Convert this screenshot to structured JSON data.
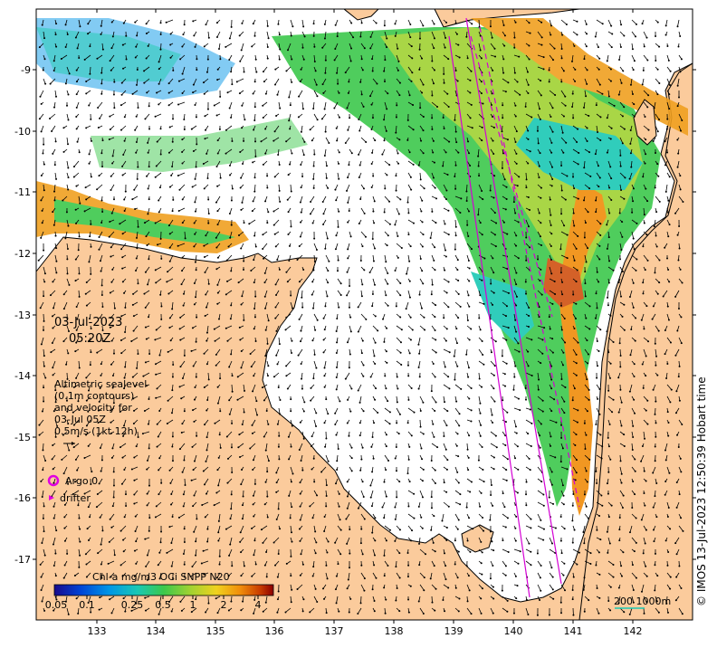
{
  "map": {
    "date": "03-Jul-2023",
    "time": "05:20Z",
    "altimetry": {
      "line1": "Altimetric sealevel",
      "line2": "(0.1m contours)",
      "line3": "and velocity for",
      "line4": "03-Jul 05Z",
      "line5": "0.5m/s (1kt 12h)"
    },
    "argo_label": "Argo 0",
    "drifter_label": "drifter",
    "colorbar": {
      "title": "Chl-a mg/m3 OCi SNPP N20",
      "ticks": [
        "0.05",
        "0.1",
        "0.25",
        "0.5",
        "1",
        "2",
        "4"
      ],
      "colors": [
        "#1a0a8c",
        "#0044d6",
        "#0096e6",
        "#19c8b4",
        "#3cc84b",
        "#a0d232",
        "#f0d21e",
        "#f08c0a",
        "#c83c00",
        "#8c0000"
      ]
    },
    "scale_label": "200  1000m",
    "credit": "© IMOS 13-Jul-2023 12:50:39 Hobart time",
    "lon_ticks": [
      "133",
      "134",
      "135",
      "136",
      "137",
      "138",
      "139",
      "140",
      "141",
      "142"
    ],
    "lat_ticks": [
      "-9",
      "-10",
      "-11",
      "-12",
      "-13",
      "-14",
      "-15",
      "-16",
      "-17"
    ],
    "colors": {
      "land": "#fbcb9c",
      "water": "#ffffff",
      "track": "#d400d4",
      "frame": "#000000"
    }
  }
}
